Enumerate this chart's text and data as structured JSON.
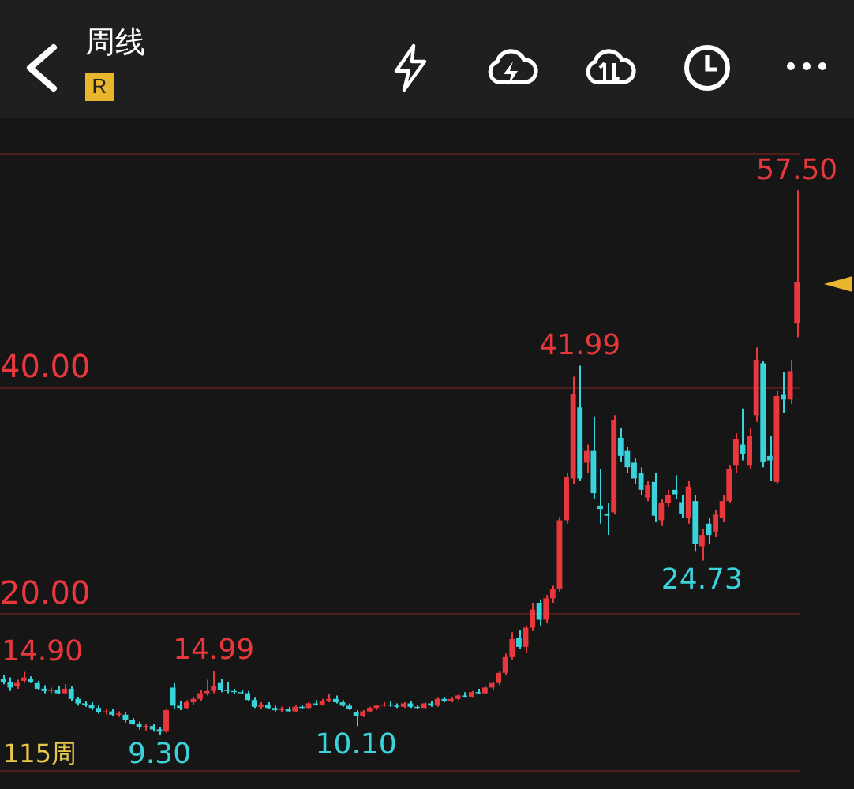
{
  "chart_data": {
    "type": "candlestick",
    "title": "周线",
    "categories": [
      null,
      null,
      null,
      null,
      null,
      null,
      null,
      null,
      null,
      null,
      null,
      null,
      null,
      null,
      null,
      null,
      null,
      null,
      null,
      null,
      null,
      null,
      null,
      null,
      null,
      null,
      null,
      null,
      null,
      null,
      null,
      null,
      null,
      null,
      null,
      null,
      null,
      null,
      null,
      null,
      null,
      null,
      null,
      null,
      null,
      null,
      null,
      null,
      null,
      null,
      null,
      null,
      null,
      null,
      null,
      null,
      null,
      null,
      null,
      null,
      null,
      null,
      null,
      null,
      null,
      null,
      null,
      null,
      null,
      null,
      null,
      null,
      null,
      null,
      null,
      null,
      null,
      null,
      null,
      null,
      null,
      null,
      null,
      null,
      null,
      null,
      null,
      null,
      null,
      null,
      null,
      null,
      null,
      null,
      null,
      null,
      null,
      null,
      null,
      null,
      null,
      null,
      null,
      null,
      null,
      null,
      null,
      null,
      null,
      null,
      null,
      null,
      null,
      null,
      null,
      null,
      null,
      null
    ],
    "ohlc": [
      [
        14.3,
        14.6,
        13.8,
        14.0
      ],
      [
        14.0,
        14.4,
        13.2,
        13.5
      ],
      [
        13.6,
        14.2,
        13.4,
        13.9
      ],
      [
        14.1,
        14.9,
        13.9,
        14.4
      ],
      [
        14.3,
        14.5,
        13.9,
        14.0
      ],
      [
        13.9,
        14.1,
        13.3,
        13.4
      ],
      [
        13.4,
        13.7,
        13.0,
        13.2
      ],
      [
        13.2,
        13.5,
        13.0,
        13.3
      ],
      [
        13.3,
        13.6,
        12.9,
        13.0
      ],
      [
        13.0,
        13.8,
        12.9,
        13.4
      ],
      [
        13.4,
        13.6,
        12.3,
        12.5
      ],
      [
        12.5,
        12.7,
        11.9,
        12.1
      ],
      [
        12.1,
        12.3,
        11.8,
        12.0
      ],
      [
        12.0,
        12.2,
        11.5,
        11.7
      ],
      [
        11.7,
        11.9,
        11.2,
        11.3
      ],
      [
        11.3,
        11.6,
        11.1,
        11.4
      ],
      [
        11.4,
        11.6,
        11.0,
        11.1
      ],
      [
        11.1,
        11.4,
        10.9,
        11.2
      ],
      [
        11.1,
        11.3,
        10.4,
        10.6
      ],
      [
        10.6,
        10.8,
        10.2,
        10.3
      ],
      [
        10.3,
        10.5,
        9.8,
        10.0
      ],
      [
        10.0,
        10.3,
        9.7,
        10.1
      ],
      [
        10.1,
        10.3,
        9.6,
        9.8
      ],
      [
        9.8,
        10.0,
        9.3,
        9.6
      ],
      [
        9.6,
        11.6,
        9.5,
        11.5
      ],
      [
        13.5,
        13.9,
        11.6,
        11.9
      ],
      [
        11.9,
        12.3,
        11.5,
        11.7
      ],
      [
        11.7,
        12.4,
        11.6,
        12.2
      ],
      [
        12.2,
        12.7,
        12.0,
        12.5
      ],
      [
        12.5,
        13.3,
        12.3,
        13.0
      ],
      [
        13.0,
        14.2,
        12.8,
        13.2
      ],
      [
        13.2,
        14.99,
        13.0,
        13.6
      ],
      [
        13.9,
        14.3,
        13.1,
        13.3
      ],
      [
        13.3,
        14.0,
        13.0,
        13.2
      ],
      [
        13.2,
        13.4,
        12.9,
        13.1
      ],
      [
        13.1,
        13.3,
        12.9,
        13.0
      ],
      [
        13.0,
        13.2,
        12.3,
        12.4
      ],
      [
        12.4,
        12.6,
        11.7,
        11.8
      ],
      [
        11.8,
        12.2,
        11.6,
        12.0
      ],
      [
        12.0,
        12.2,
        11.6,
        11.7
      ],
      [
        11.7,
        11.9,
        11.4,
        11.5
      ],
      [
        11.5,
        11.8,
        11.3,
        11.6
      ],
      [
        11.6,
        11.8,
        11.3,
        11.4
      ],
      [
        11.4,
        11.9,
        11.3,
        11.8
      ],
      [
        11.8,
        12.0,
        11.6,
        11.7
      ],
      [
        11.7,
        12.2,
        11.6,
        12.1
      ],
      [
        12.1,
        12.4,
        11.9,
        12.0
      ],
      [
        12.0,
        12.5,
        11.9,
        12.3
      ],
      [
        12.3,
        12.9,
        12.2,
        12.5
      ],
      [
        12.5,
        12.8,
        12.1,
        12.2
      ],
      [
        12.2,
        12.4,
        11.8,
        11.9
      ],
      [
        11.9,
        12.1,
        11.5,
        11.6
      ],
      [
        11.3,
        11.5,
        10.1,
        11.0
      ],
      [
        11.0,
        11.5,
        10.9,
        11.4
      ],
      [
        11.4,
        11.8,
        11.3,
        11.7
      ],
      [
        11.7,
        12.0,
        11.5,
        11.9
      ],
      [
        11.9,
        12.2,
        11.8,
        12.0
      ],
      [
        12.0,
        12.3,
        11.8,
        11.9
      ],
      [
        11.9,
        12.1,
        11.7,
        11.8
      ],
      [
        11.8,
        12.2,
        11.7,
        12.1
      ],
      [
        12.1,
        12.3,
        11.7,
        11.8
      ],
      [
        11.8,
        12.0,
        11.6,
        11.7
      ],
      [
        11.7,
        12.2,
        11.6,
        12.1
      ],
      [
        12.1,
        12.3,
        11.8,
        11.9
      ],
      [
        11.9,
        12.6,
        11.8,
        12.5
      ],
      [
        12.5,
        12.7,
        12.2,
        12.3
      ],
      [
        12.3,
        12.6,
        12.2,
        12.5
      ],
      [
        12.5,
        12.9,
        12.4,
        12.8
      ],
      [
        12.8,
        13.1,
        12.6,
        12.7
      ],
      [
        12.7,
        13.2,
        12.6,
        13.1
      ],
      [
        13.1,
        13.4,
        12.9,
        13.0
      ],
      [
        13.0,
        13.6,
        12.9,
        13.5
      ],
      [
        13.5,
        14.0,
        13.3,
        13.9
      ],
      [
        13.9,
        15.0,
        13.7,
        14.8
      ],
      [
        14.8,
        16.5,
        14.6,
        16.2
      ],
      [
        16.2,
        18.4,
        16.0,
        17.8
      ],
      [
        17.9,
        18.6,
        16.9,
        17.1
      ],
      [
        17.1,
        19.0,
        16.6,
        18.8
      ],
      [
        18.8,
        21.0,
        18.5,
        20.4
      ],
      [
        21.0,
        21.3,
        19.0,
        19.5
      ],
      [
        19.5,
        21.7,
        19.2,
        21.4
      ],
      [
        21.4,
        22.5,
        21.0,
        22.2
      ],
      [
        22.2,
        28.6,
        22.0,
        28.3
      ],
      [
        28.3,
        32.5,
        28.0,
        32.1
      ],
      [
        32.0,
        41.0,
        31.5,
        39.5
      ],
      [
        38.3,
        41.99,
        31.8,
        32.0
      ],
      [
        33.4,
        35.0,
        32.5,
        34.5
      ],
      [
        34.5,
        37.5,
        30.2,
        30.7
      ],
      [
        29.6,
        32.8,
        28.0,
        29.3
      ],
      [
        28.9,
        29.8,
        27.0,
        28.7
      ],
      [
        29.0,
        37.6,
        28.8,
        37.2
      ],
      [
        35.6,
        36.5,
        33.5,
        34.0
      ],
      [
        34.5,
        34.8,
        32.5,
        33.0
      ],
      [
        33.4,
        33.8,
        31.5,
        32.0
      ],
      [
        32.5,
        33.0,
        30.5,
        31.0
      ],
      [
        30.3,
        31.8,
        30.0,
        31.4
      ],
      [
        31.7,
        32.5,
        28.2,
        28.7
      ],
      [
        28.3,
        30.2,
        27.8,
        29.8
      ],
      [
        29.8,
        31.0,
        29.5,
        30.5
      ],
      [
        31.0,
        32.3,
        30.2,
        30.6
      ],
      [
        29.9,
        30.5,
        28.5,
        28.9
      ],
      [
        28.5,
        31.8,
        28.0,
        31.3
      ],
      [
        30.0,
        30.5,
        25.6,
        26.2
      ],
      [
        26.0,
        27.5,
        24.73,
        27.0
      ],
      [
        28.0,
        28.5,
        26.2,
        27.0
      ],
      [
        27.3,
        29.2,
        26.8,
        28.8
      ],
      [
        28.5,
        30.5,
        28.2,
        30.0
      ],
      [
        30.0,
        33.2,
        29.8,
        32.8
      ],
      [
        33.2,
        36.0,
        32.5,
        35.5
      ],
      [
        35.0,
        38.2,
        33.6,
        34.2
      ],
      [
        33.2,
        36.5,
        32.8,
        35.8
      ],
      [
        37.6,
        43.6,
        37.0,
        42.5
      ],
      [
        42.2,
        42.4,
        33.0,
        33.5
      ],
      [
        34.0,
        35.8,
        31.8,
        33.6
      ],
      [
        31.7,
        39.8,
        31.5,
        39.3
      ],
      [
        39.4,
        41.4,
        37.8,
        39.0
      ],
      [
        39.0,
        42.5,
        38.6,
        41.5
      ],
      [
        45.7,
        57.5,
        44.5,
        49.4
      ]
    ],
    "colors": [
      "#3ad3dc",
      "#3ad3dc",
      "#e8383d",
      "#e8383d",
      "#3ad3dc",
      "#3ad3dc",
      "#3ad3dc",
      "#e8383d",
      "#3ad3dc",
      "#e8383d",
      "#3ad3dc",
      "#3ad3dc",
      "#3ad3dc",
      "#3ad3dc",
      "#3ad3dc",
      "#e8383d",
      "#3ad3dc",
      "#e8383d",
      "#3ad3dc",
      "#3ad3dc",
      "#3ad3dc",
      "#e8383d",
      "#3ad3dc",
      "#3ad3dc",
      "#e8383d",
      "#3ad3dc",
      "#3ad3dc",
      "#e8383d",
      "#e8383d",
      "#e8383d",
      "#e8383d",
      "#e8383d",
      "#3ad3dc",
      "#3ad3dc",
      "#3ad3dc",
      "#3ad3dc",
      "#3ad3dc",
      "#3ad3dc",
      "#e8383d",
      "#3ad3dc",
      "#3ad3dc",
      "#e8383d",
      "#3ad3dc",
      "#e8383d",
      "#3ad3dc",
      "#e8383d",
      "#3ad3dc",
      "#e8383d",
      "#e8383d",
      "#3ad3dc",
      "#3ad3dc",
      "#3ad3dc",
      "#3ad3dc",
      "#e8383d",
      "#e8383d",
      "#e8383d",
      "#e8383d",
      "#3ad3dc",
      "#3ad3dc",
      "#e8383d",
      "#3ad3dc",
      "#3ad3dc",
      "#e8383d",
      "#3ad3dc",
      "#e8383d",
      "#3ad3dc",
      "#e8383d",
      "#e8383d",
      "#3ad3dc",
      "#e8383d",
      "#3ad3dc",
      "#e8383d",
      "#e8383d",
      "#e8383d",
      "#e8383d",
      "#e8383d",
      "#3ad3dc",
      "#e8383d",
      "#e8383d",
      "#3ad3dc",
      "#e8383d",
      "#e8383d",
      "#e8383d",
      "#e8383d",
      "#e8383d",
      "#3ad3dc",
      "#e8383d",
      "#3ad3dc",
      "#3ad3dc",
      "#3ad3dc",
      "#e8383d",
      "#3ad3dc",
      "#3ad3dc",
      "#3ad3dc",
      "#3ad3dc",
      "#e8383d",
      "#3ad3dc",
      "#e8383d",
      "#e8383d",
      "#3ad3dc",
      "#3ad3dc",
      "#e8383d",
      "#3ad3dc",
      "#e8383d",
      "#3ad3dc",
      "#e8383d",
      "#e8383d",
      "#e8383d",
      "#e8383d",
      "#3ad3dc",
      "#e8383d",
      "#e8383d",
      "#3ad3dc",
      "#3ad3dc",
      "#e8383d",
      "#3ad3dc",
      "#e8383d",
      "#e8383d"
    ],
    "ylim": [
      6.2,
      60.8
    ],
    "yticks": [
      {
        "value": 20,
        "label": "20.00"
      },
      {
        "value": 40,
        "label": "40.00"
      }
    ],
    "grid": "y",
    "value_labels": [
      null,
      null,
      null,
      "14.90",
      null,
      null,
      null,
      null,
      null,
      null,
      null,
      null,
      null,
      null,
      null,
      null,
      null,
      null,
      null,
      null,
      null,
      null,
      null,
      "9.30",
      null,
      null,
      null,
      null,
      null,
      null,
      null,
      "14.99",
      null,
      null,
      null,
      null,
      null,
      null,
      null,
      null,
      null,
      null,
      null,
      null,
      null,
      null,
      null,
      null,
      null,
      null,
      null,
      null,
      "10.10",
      null,
      null,
      null,
      null,
      null,
      null,
      null,
      null,
      null,
      null,
      null,
      null,
      null,
      null,
      null,
      null,
      null,
      null,
      null,
      null,
      null,
      null,
      null,
      null,
      null,
      null,
      null,
      null,
      null,
      null,
      null,
      null,
      "41.99",
      null,
      null,
      null,
      null,
      null,
      null,
      null,
      null,
      null,
      null,
      null,
      null,
      null,
      null,
      null,
      null,
      null,
      "24.73",
      null,
      null,
      null,
      null,
      null,
      null,
      null,
      null,
      null,
      null,
      null,
      null,
      null,
      "57.50"
    ],
    "annotations": [
      "R",
      "115周"
    ]
  }
}
